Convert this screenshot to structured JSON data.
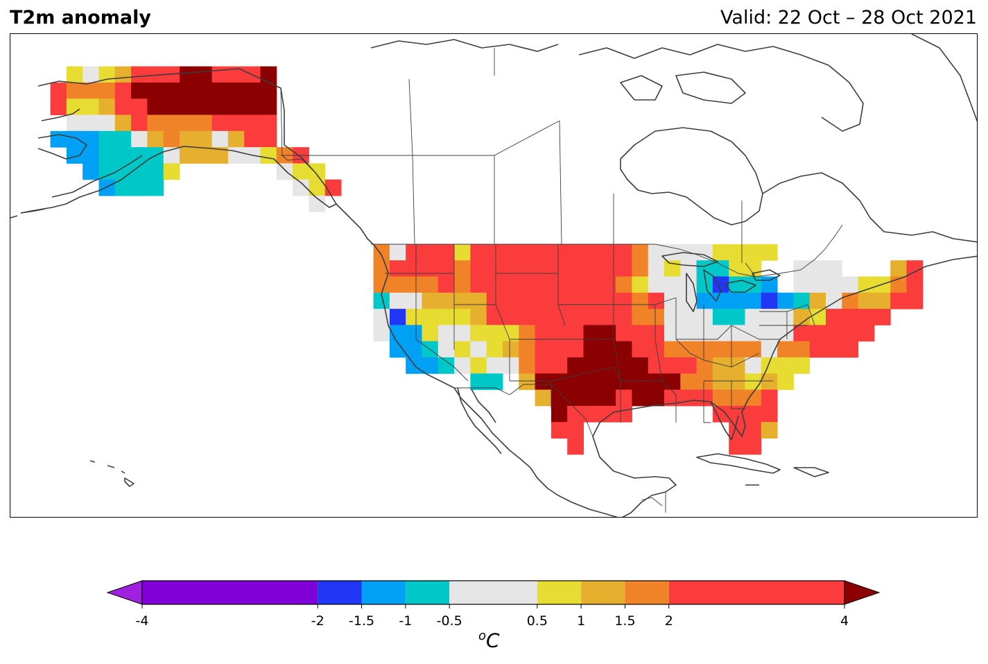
{
  "header": {
    "title": "T2m anomaly",
    "valid_text": "Valid: 22 Oct – 28 Oct 2021"
  },
  "colorbar": {
    "unit_prefix": "o",
    "unit": "C",
    "min": -4,
    "max": 4,
    "ticks": [
      {
        "value": -4,
        "label": "-4"
      },
      {
        "value": -2,
        "label": "-2"
      },
      {
        "value": -1.5,
        "label": "-1.5"
      },
      {
        "value": -1,
        "label": "-1"
      },
      {
        "value": -0.5,
        "label": "-0.5"
      },
      {
        "value": 0.5,
        "label": "0.5"
      },
      {
        "value": 1,
        "label": "1"
      },
      {
        "value": 1.5,
        "label": "1.5"
      },
      {
        "value": 2,
        "label": "2"
      },
      {
        "value": 4,
        "label": "4"
      }
    ],
    "bins": [
      {
        "from": -4,
        "to": -2,
        "color": "#8000d8"
      },
      {
        "from": -2,
        "to": -1.5,
        "color": "#2236f5"
      },
      {
        "from": -1.5,
        "to": -1,
        "color": "#00a0f5"
      },
      {
        "from": -1,
        "to": -0.5,
        "color": "#00c8c8"
      },
      {
        "from": -0.5,
        "to": 0.5,
        "color": "#e6e6e6"
      },
      {
        "from": 0.5,
        "to": 1,
        "color": "#e6dc32"
      },
      {
        "from": 1,
        "to": 1.5,
        "color": "#e6af2d"
      },
      {
        "from": 1.5,
        "to": 2,
        "color": "#f08228"
      },
      {
        "from": 2,
        "to": 4,
        "color": "#fa3c3c"
      }
    ],
    "under_color": "#a020e0",
    "over_color": "#8b0000"
  },
  "map": {
    "grid_columns": 60,
    "grid_rows": 30,
    "palette": {
      "W": "#e6e6e6",
      "Y": "#e6dc32",
      "O": "#e6af2d",
      "A": "#f08228",
      "R": "#fa3c3c",
      "D": "#8b0000",
      "B": "#00a0f5",
      "T": "#00c8c8",
      "N": "#2236f5"
    },
    "alaska_rows": [
      "..YWYORRRDDRRRD",
      ".RAAARDDDDDDDDD",
      ".RYYORRDDDDDDDD",
      "..WWWORAAAARRRR",
      ".BBBTTWOAOOWORR",
      "..BBTTTTWOOOWWY",
      "...BTTTTY......",
      "....BTTT.......",
      "..............."
    ],
    "panhandle_rows": [
      "YAR.",
      ".WYY",
      "..WYR",
      "...W."
    ],
    "conus_rows": [
      "AWRRRYRRRRRRRRRRAWWWWYYYY........",
      "ARRRRARRRRRRRRRRAWYWTTYY..WWW...OR",
      "AAAARARRRRRRRRRAYWWWTNTTB.WWWWYYAR",
      "TWWOOOORRRRRRRRRARWWBBBBNBTOWAOORR",
      "WNYYYYORRRRRRRRRAAWWWTTWWWOYRRRR..",
      "WBBYWWYYYARRRDDRRRWWWWWWWWRRRRR...",
      ".BBTWYWYOARRRDDDRRAAAAAAWAARRR....",
      "..BBTWYWWARRDDDDDRRRAOOWYYY......",
      "......TT.ODDDDDDDDDAAOOYOY.......",
      "..........ODDDDRDDRRRAAAR........",
      "...........DRRRR.....RRRR........",
      "...........RR.........RRO........",
      "............R.........RR........."
    ],
    "conus_origin_col": 22,
    "conus_origin_row": 13,
    "alaska_origin_col": 1,
    "alaska_origin_row": 2,
    "panhandle_origin_col": 15,
    "panhandle_origin_row": 7
  }
}
